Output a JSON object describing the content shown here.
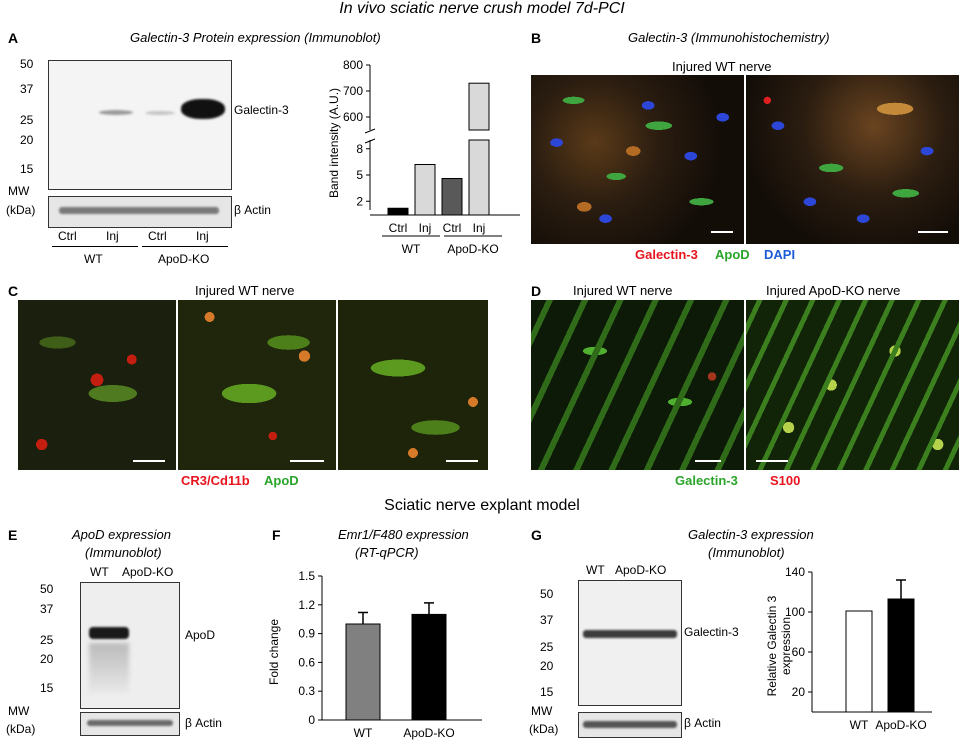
{
  "titles": {
    "main": "In vivo sciatic nerve crush model 7d-PCI",
    "explant": "Sciatic nerve explant model"
  },
  "panel_letters": {
    "A": "A",
    "B": "B",
    "C": "C",
    "D": "D",
    "E": "E",
    "F": "F",
    "G": "G"
  },
  "panelA": {
    "title": "Galectin-3 Protein expression (Immunoblot)",
    "mw_markers": [
      "50",
      "37",
      "25",
      "20",
      "15"
    ],
    "mw_label_1": "MW",
    "mw_label_2": "(kDa)",
    "band_label": "Galectin-3",
    "actin_label": "β Actin",
    "lanes": [
      "Ctrl",
      "Inj",
      "Ctrl",
      "Inj"
    ],
    "groups": [
      "WT",
      "ApoD-KO"
    ]
  },
  "panelB": {
    "title": "Galectin-3 (Immunohistochemistry)",
    "subtitle": "Injured WT nerve",
    "legend": [
      {
        "text": "Galectin-3",
        "color": "#e8141e"
      },
      {
        "text": "ApoD",
        "color": "#2aa52a"
      },
      {
        "text": "DAPI",
        "color": "#1d5bd6"
      }
    ]
  },
  "panelC": {
    "subtitle": "Injured WT nerve",
    "legend": [
      {
        "text": "CR3/Cd11b",
        "color": "#e8141e"
      },
      {
        "text": "ApoD",
        "color": "#2aa52a"
      }
    ]
  },
  "panelD": {
    "subtitle_wt": "Injured WT nerve",
    "subtitle_ko": "Injured ApoD-KO nerve",
    "legend": [
      {
        "text": "Galectin-3",
        "color": "#2aa52a"
      },
      {
        "text": "S100",
        "color": "#e8141e"
      }
    ]
  },
  "panelE": {
    "title_1": "ApoD expression",
    "title_2": "(Immunoblot)",
    "lanes": [
      "WT",
      "ApoD-KO"
    ],
    "mw_markers": [
      "50",
      "37",
      "25",
      "20",
      "15"
    ],
    "mw_label_1": "MW",
    "mw_label_2": "(kDa)",
    "band_label": "ApoD",
    "actin_label": "β Actin"
  },
  "panelF": {
    "title_1": "Emr1/F480 expression",
    "title_2": "(RT-qPCR)"
  },
  "panelG": {
    "title_1": "Galectin-3 expression",
    "title_2": "(Immunoblot)",
    "lanes": [
      "WT",
      "ApoD-KO"
    ],
    "mw_markers": [
      "50",
      "37",
      "25",
      "20",
      "15"
    ],
    "mw_label_1": "MW",
    "mw_label_2": "(kDa)",
    "band_label": "Galectin-3",
    "actin_label": "β Actin"
  },
  "chart_data": [
    {
      "id": "A",
      "type": "bar",
      "ylabel": "Band intensity (A.U.)",
      "y_broken_axis": true,
      "yticks_lower": [
        2,
        5,
        8
      ],
      "yticks_upper": [
        600,
        700,
        800
      ],
      "categories": [
        "Ctrl",
        "Inj",
        "Ctrl",
        "Inj"
      ],
      "groups": [
        "WT",
        "ApoD-KO"
      ],
      "values": [
        1.2,
        6.2,
        4.6,
        730
      ],
      "colors": [
        "#000000",
        "#d9d9d9",
        "#595959",
        "#d9d9d9"
      ]
    },
    {
      "id": "F",
      "type": "bar",
      "ylabel": "Fold change",
      "yticks": [
        "0",
        "0.3",
        "0.6",
        "0.9",
        "1.2",
        "1.5"
      ],
      "ylim": [
        0,
        1.5
      ],
      "categories": [
        "WT",
        "ApoD-KO"
      ],
      "values": [
        1.0,
        1.1
      ],
      "errors": [
        0.12,
        0.12
      ],
      "colors": [
        "#808080",
        "#000000"
      ]
    },
    {
      "id": "G",
      "type": "bar",
      "ylabel_1": "Relative Galectin 3",
      "ylabel_2": "expression",
      "yticks": [
        "20",
        "60",
        "100",
        "140"
      ],
      "ylim": [
        0,
        140
      ],
      "categories": [
        "WT",
        "ApoD-KO"
      ],
      "values": [
        101,
        113
      ],
      "errors": [
        0,
        19
      ],
      "colors": [
        "#ffffff",
        "#000000"
      ]
    }
  ]
}
